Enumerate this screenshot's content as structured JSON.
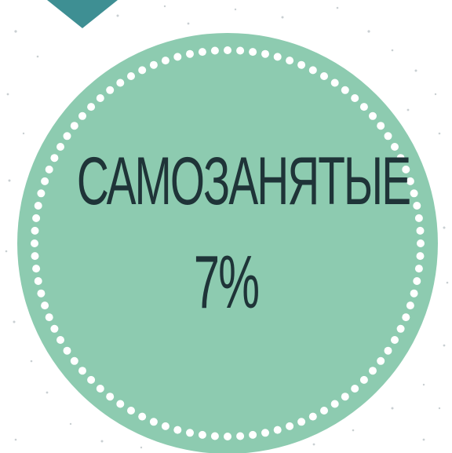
{
  "badge": {
    "title": "САМОЗАНЯТЫЕ",
    "value": "7%"
  },
  "colors": {
    "circle_fill": "#8dcbb0",
    "dots": "#ffffff",
    "text": "#1f3438",
    "corner_shape": "#3e8f93",
    "speckles": "#c9cfd2"
  }
}
